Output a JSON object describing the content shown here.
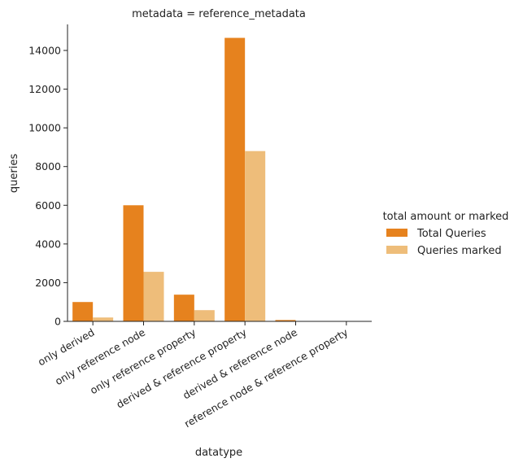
{
  "chart_data": {
    "type": "bar",
    "title": "metadata = reference_metadata",
    "xlabel": "datatype",
    "ylabel": "queries",
    "categories": [
      "only derived",
      "only reference node",
      "only reference property",
      "derived & reference property",
      "derived & reference node",
      "reference node & reference property"
    ],
    "series": [
      {
        "name": "Total Queries",
        "color": "#e6821e",
        "values": [
          1000,
          6000,
          1380,
          14650,
          70,
          0
        ]
      },
      {
        "name": "Queries marked",
        "color": "#eebd7a",
        "values": [
          200,
          2560,
          580,
          8800,
          10,
          0
        ]
      }
    ],
    "ylim": [
      0,
      14000
    ],
    "yticks": [
      0,
      2000,
      4000,
      6000,
      8000,
      10000,
      12000,
      14000
    ],
    "legend": {
      "title": "total amount or marked",
      "placement": "right"
    },
    "grid": false
  }
}
